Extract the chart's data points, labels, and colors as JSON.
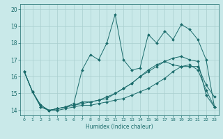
{
  "xlabel": "Humidex (Indice chaleur)",
  "xlim": [
    -0.5,
    23.5
  ],
  "ylim": [
    13.7,
    20.3
  ],
  "xticks": [
    0,
    1,
    2,
    3,
    4,
    5,
    6,
    7,
    8,
    9,
    10,
    11,
    12,
    13,
    14,
    15,
    16,
    17,
    18,
    19,
    20,
    21,
    22,
    23
  ],
  "yticks": [
    14,
    15,
    16,
    17,
    18,
    19,
    20
  ],
  "background_color": "#c9e9e9",
  "grid_color": "#a8cece",
  "line_color": "#1a6b6b",
  "line1_x": [
    0,
    1,
    2,
    3,
    4,
    5,
    6,
    7,
    8,
    9,
    10,
    11,
    12,
    13,
    14,
    15,
    16,
    17,
    18,
    19,
    20,
    21,
    22,
    23
  ],
  "line1_y": [
    16.3,
    15.1,
    14.2,
    14.0,
    14.0,
    14.1,
    14.2,
    14.3,
    14.3,
    14.4,
    14.5,
    14.6,
    14.7,
    14.9,
    15.1,
    15.3,
    15.6,
    15.9,
    16.3,
    16.6,
    16.7,
    16.4,
    15.2,
    14.2
  ],
  "line2_x": [
    0,
    1,
    2,
    3,
    4,
    5,
    6,
    7,
    8,
    9,
    10,
    11,
    12,
    13,
    14,
    15,
    16,
    17,
    18,
    19,
    20,
    21,
    22,
    23
  ],
  "line2_y": [
    16.3,
    15.1,
    14.3,
    14.0,
    14.1,
    14.2,
    14.3,
    14.4,
    14.5,
    14.6,
    14.8,
    15.0,
    15.3,
    15.6,
    16.0,
    16.4,
    16.7,
    16.9,
    16.7,
    16.6,
    16.6,
    16.6,
    15.5,
    14.8
  ],
  "line3_x": [
    0,
    1,
    2,
    3,
    4,
    5,
    6,
    7,
    8,
    9,
    10,
    11,
    12,
    13,
    14,
    15,
    16,
    17,
    18,
    19,
    20,
    21,
    22,
    23
  ],
  "line3_y": [
    16.3,
    15.1,
    14.2,
    14.0,
    14.1,
    14.2,
    14.4,
    16.4,
    17.3,
    17.0,
    18.0,
    19.7,
    17.0,
    16.4,
    16.5,
    18.5,
    18.0,
    18.7,
    18.2,
    19.1,
    18.8,
    18.2,
    17.0,
    14.2
  ],
  "line4_x": [
    0,
    1,
    2,
    3,
    4,
    5,
    6,
    7,
    8,
    9,
    10,
    11,
    12,
    13,
    14,
    15,
    16,
    17,
    18,
    19,
    20,
    21,
    22,
    23
  ],
  "line4_y": [
    16.3,
    15.1,
    14.3,
    14.0,
    14.1,
    14.2,
    14.3,
    14.5,
    14.5,
    14.6,
    14.7,
    15.0,
    15.3,
    15.6,
    16.0,
    16.3,
    16.6,
    16.9,
    17.1,
    17.2,
    17.0,
    16.9,
    14.9,
    14.2
  ]
}
